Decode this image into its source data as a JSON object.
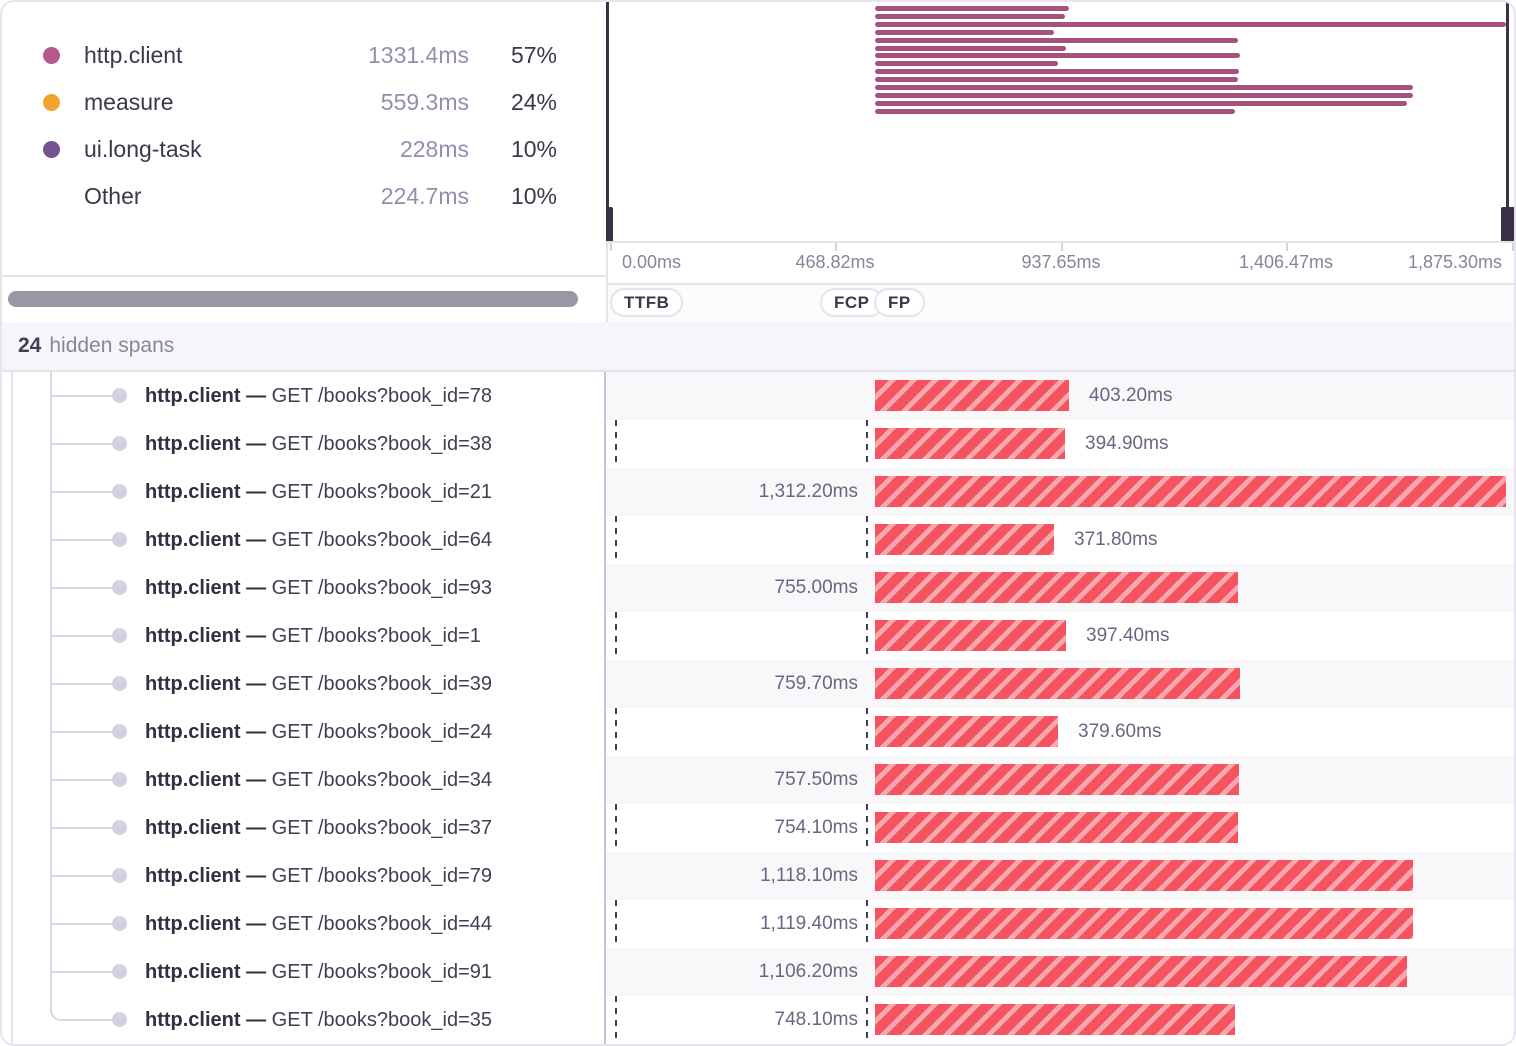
{
  "legend": {
    "items": [
      {
        "name": "http.client",
        "duration": "1331.4ms",
        "percent": "57%",
        "color": "#b45a8c"
      },
      {
        "name": "measure",
        "duration": "559.3ms",
        "percent": "24%",
        "color": "#f0a42e"
      },
      {
        "name": "ui.long-task",
        "duration": "228ms",
        "percent": "10%",
        "color": "#74538f"
      },
      {
        "name": "Other",
        "duration": "224.7ms",
        "percent": "10%",
        "color": null
      }
    ]
  },
  "timeline": {
    "axis_ticks": [
      "0.00ms",
      "468.82ms",
      "937.65ms",
      "1,406.47ms",
      "1,875.30ms"
    ],
    "axis_start_ms": 0,
    "axis_end_ms": 1875.3,
    "span_start_offset_ms": 555
  },
  "vitals": [
    "TTFB",
    "FCP",
    "FP"
  ],
  "hidden_spans": {
    "count": "24",
    "label": "hidden spans"
  },
  "spans": [
    {
      "op": "http.client",
      "description": "GET /books?book_id=78",
      "duration_ms": 403.2,
      "duration_label": "403.20ms"
    },
    {
      "op": "http.client",
      "description": "GET /books?book_id=38",
      "duration_ms": 394.9,
      "duration_label": "394.90ms"
    },
    {
      "op": "http.client",
      "description": "GET /books?book_id=21",
      "duration_ms": 1312.2,
      "duration_label": "1,312.20ms"
    },
    {
      "op": "http.client",
      "description": "GET /books?book_id=64",
      "duration_ms": 371.8,
      "duration_label": "371.80ms"
    },
    {
      "op": "http.client",
      "description": "GET /books?book_id=93",
      "duration_ms": 755.0,
      "duration_label": "755.00ms"
    },
    {
      "op": "http.client",
      "description": "GET /books?book_id=1",
      "duration_ms": 397.4,
      "duration_label": "397.40ms"
    },
    {
      "op": "http.client",
      "description": "GET /books?book_id=39",
      "duration_ms": 759.7,
      "duration_label": "759.70ms"
    },
    {
      "op": "http.client",
      "description": "GET /books?book_id=24",
      "duration_ms": 379.6,
      "duration_label": "379.60ms"
    },
    {
      "op": "http.client",
      "description": "GET /books?book_id=34",
      "duration_ms": 757.5,
      "duration_label": "757.50ms"
    },
    {
      "op": "http.client",
      "description": "GET /books?book_id=37",
      "duration_ms": 754.1,
      "duration_label": "754.10ms"
    },
    {
      "op": "http.client",
      "description": "GET /books?book_id=79",
      "duration_ms": 1118.1,
      "duration_label": "1,118.10ms"
    },
    {
      "op": "http.client",
      "description": "GET /books?book_id=44",
      "duration_ms": 1119.4,
      "duration_label": "1,119.40ms"
    },
    {
      "op": "http.client",
      "description": "GET /books?book_id=91",
      "duration_ms": 1106.2,
      "duration_label": "1,106.20ms"
    },
    {
      "op": "http.client",
      "description": "GET /books?book_id=35",
      "duration_ms": 748.1,
      "duration_label": "748.10ms"
    }
  ],
  "colors": {
    "minimap_bar": "#a7527e",
    "minimap_handle": "#3a3147",
    "span_bar_stripe_dark": "#f4535f",
    "span_bar_stripe_light": "#f7a8ae",
    "row_alt_background": "#f8f7fa",
    "scrollbar_thumb": "#9b96a4"
  }
}
